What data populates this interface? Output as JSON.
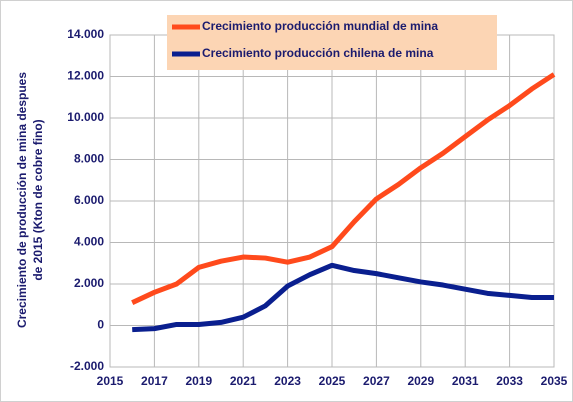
{
  "chart_data": {
    "type": "line",
    "ylabel": [
      "Crecimiento de producción de mina despues",
      "de 2015 (Kton de cobre fino)"
    ],
    "x": [
      2016,
      2017,
      2018,
      2019,
      2020,
      2021,
      2022,
      2023,
      2024,
      2025,
      2026,
      2027,
      2028,
      2029,
      2030,
      2031,
      2032,
      2033,
      2034,
      2035
    ],
    "series": [
      {
        "name": "Crecimiento producción mundial de mina",
        "color": "#ff4a1c",
        "values": [
          1100,
          1600,
          2000,
          2800,
          3100,
          3300,
          3250,
          3050,
          3300,
          3800,
          5000,
          6100,
          6800,
          7600,
          8300,
          9100,
          9900,
          10600,
          11400,
          12100
        ]
      },
      {
        "name": "Crecimiento producción chilena de mina",
        "color": "#0a1f8f",
        "values": [
          -200,
          -150,
          50,
          50,
          150,
          400,
          950,
          1900,
          2450,
          2900,
          2650,
          2500,
          2300,
          2100,
          1950,
          1750,
          1550,
          1450,
          1350,
          1350
        ]
      }
    ],
    "xlim": [
      2015,
      2035
    ],
    "xticks": [
      2015,
      2017,
      2019,
      2021,
      2023,
      2025,
      2027,
      2029,
      2031,
      2033,
      2035
    ],
    "ylim": [
      -2000,
      14000
    ],
    "yticks": [
      {
        "value": -2000,
        "label": "-2.000"
      },
      0,
      {
        "value": 2000,
        "label": "2.000"
      },
      {
        "value": 4000,
        "label": "4.000"
      },
      {
        "value": 6000,
        "label": "6.000"
      },
      {
        "value": 8000,
        "label": "8.000"
      },
      {
        "value": 10000,
        "label": "10.000"
      },
      {
        "value": 12000,
        "label": "12.000"
      },
      {
        "value": 14000,
        "label": "14.000"
      }
    ],
    "grid": true,
    "legend": "top"
  }
}
